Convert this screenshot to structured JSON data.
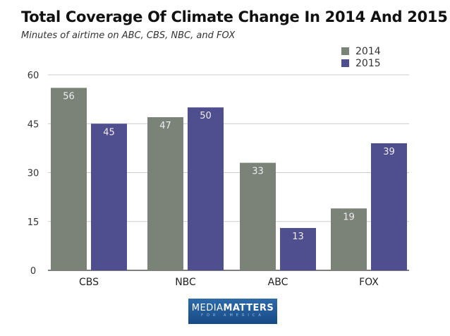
{
  "chart_data": {
    "type": "bar",
    "title": "Total Coverage Of Climate Change In 2014 And 2015",
    "subtitle": "Minutes of airtime on ABC, CBS, NBC, and FOX",
    "categories": [
      "CBS",
      "NBC",
      "ABC",
      "FOX"
    ],
    "series": [
      {
        "name": "2014",
        "values": [
          56,
          47,
          33,
          19
        ],
        "color": "#7b8278"
      },
      {
        "name": "2015",
        "values": [
          45,
          50,
          13,
          39
        ],
        "color": "#4f4f90"
      }
    ],
    "yticks": [
      0,
      15,
      30,
      45,
      60
    ],
    "ylim": [
      0,
      60
    ],
    "grid": true,
    "legend": "top-right",
    "data_labels": true
  },
  "logo": {
    "main_light": "MEDIA",
    "main_bold": "MATTERS",
    "sub": "FOR AMERICA"
  }
}
